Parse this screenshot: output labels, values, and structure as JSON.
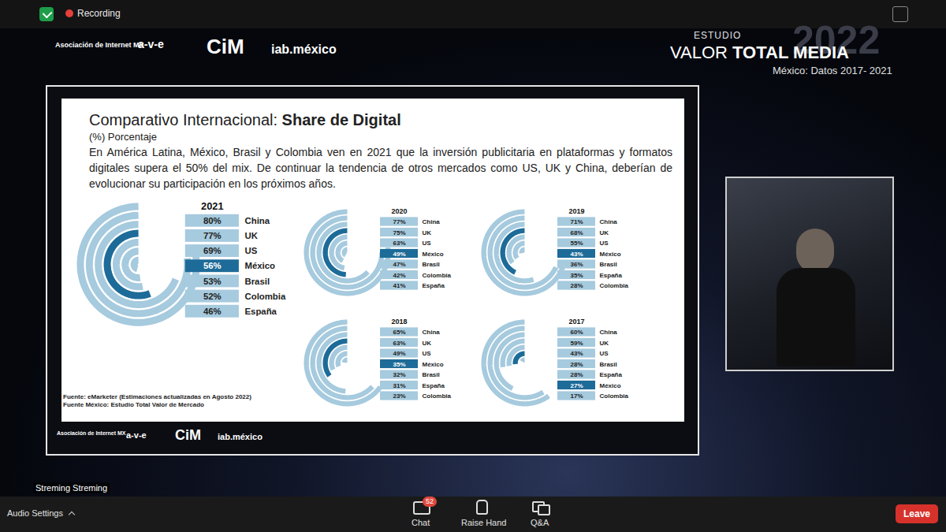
{
  "chart_data": [
    {
      "type": "radial_bar",
      "title": "2021",
      "categories": [
        "China",
        "UK",
        "US",
        "México",
        "Brasil",
        "Colombia",
        "España"
      ],
      "values": [
        80,
        77,
        69,
        56,
        53,
        52,
        46
      ],
      "value_labels": [
        "80%",
        "77%",
        "69%",
        "56%",
        "53%",
        "52%",
        "46%"
      ],
      "colors": [
        "#a6cade",
        "#a6cade",
        "#a6cade",
        "#1d6b98",
        "#a6cade",
        "#a6cade",
        "#a6cade"
      ],
      "ylim": [
        0,
        100
      ],
      "data_labels": true,
      "tick_labels": false
    },
    {
      "type": "radial_bar",
      "title": "2020",
      "categories": [
        "China",
        "UK",
        "US",
        "México",
        "Brasil",
        "Colombia",
        "España"
      ],
      "values": [
        77,
        75,
        63,
        49,
        47,
        42,
        41
      ],
      "value_labels": [
        "77%",
        "75%",
        "63%",
        "49%",
        "47%",
        "42%",
        "41%"
      ],
      "colors": [
        "#a6cade",
        "#a6cade",
        "#a6cade",
        "#1d6b98",
        "#a6cade",
        "#a6cade",
        "#a6cade"
      ],
      "ylim": [
        0,
        100
      ],
      "data_labels": true,
      "tick_labels": false
    },
    {
      "type": "radial_bar",
      "title": "2019",
      "categories": [
        "China",
        "UK",
        "US",
        "México",
        "Brasil",
        "España",
        "Colombia"
      ],
      "values": [
        71,
        68,
        55,
        43,
        36,
        35,
        28
      ],
      "value_labels": [
        "71%",
        "68%",
        "55%",
        "43%",
        "36%",
        "35%",
        "28%"
      ],
      "colors": [
        "#a6cade",
        "#a6cade",
        "#a6cade",
        "#1d6b98",
        "#a6cade",
        "#a6cade",
        "#a6cade"
      ],
      "ylim": [
        0,
        100
      ],
      "data_labels": true,
      "tick_labels": false
    },
    {
      "type": "radial_bar",
      "title": "2018",
      "categories": [
        "China",
        "UK",
        "US",
        "México",
        "Brasil",
        "España",
        "Colombia"
      ],
      "values": [
        65,
        63,
        49,
        35,
        32,
        31,
        23
      ],
      "value_labels": [
        "65%",
        "63%",
        "49%",
        "35%",
        "32%",
        "31%",
        "23%"
      ],
      "colors": [
        "#a6cade",
        "#a6cade",
        "#a6cade",
        "#1d6b98",
        "#a6cade",
        "#a6cade",
        "#a6cade"
      ],
      "ylim": [
        0,
        100
      ],
      "data_labels": true,
      "tick_labels": false
    },
    {
      "type": "radial_bar",
      "title": "2017",
      "categories": [
        "China",
        "UK",
        "US",
        "Brasil",
        "España",
        "México",
        "Colombia"
      ],
      "values": [
        60,
        59,
        43,
        28,
        28,
        27,
        17
      ],
      "value_labels": [
        "60%",
        "59%",
        "43%",
        "28%",
        "28%",
        "27%",
        "17%"
      ],
      "colors": [
        "#a6cade",
        "#a6cade",
        "#a6cade",
        "#a6cade",
        "#a6cade",
        "#1d6b98",
        "#a6cade"
      ],
      "ylim": [
        0,
        100
      ],
      "data_labels": true,
      "tick_labels": false
    }
  ],
  "screen": {
    "recording": "Recording",
    "logos": [
      "Asociación de Internet MX",
      "a-v-e",
      "CiM",
      "iab.méxico"
    ],
    "study": {
      "kicker": "ESTUDIO",
      "title": "VALOR",
      "title_bold": "TOTAL MEDIA",
      "year": "2022",
      "subtitle": "México: Datos 2017- 2021"
    },
    "slide": {
      "title": "Comparativo Internacional:",
      "title_bold": "Share de Digital",
      "unit": "(%) Porcentaje",
      "text": "En América Latina, México, Brasil y Colombia ven en 2021 que la inversión publicitaria en plataformas y formatos digitales supera el 50% del mix.  De continuar la tendencia de otros mercados como US, UK y China, deberían de evolucionar su participación en los próximos años.",
      "sources": [
        "Fuente: eMarketer (Estimaciones actualizadas en Agosto 2022)",
        "Fuente México: Estudio Total Valor de Mercado"
      ]
    },
    "video_label": "Streming Streming",
    "toolbar": {
      "audio": "Audio Settings",
      "chat": "Chat",
      "chat_badge": 52,
      "raise_hand": "Raise Hand",
      "qa": "Q&A",
      "leave": "Leave"
    }
  }
}
